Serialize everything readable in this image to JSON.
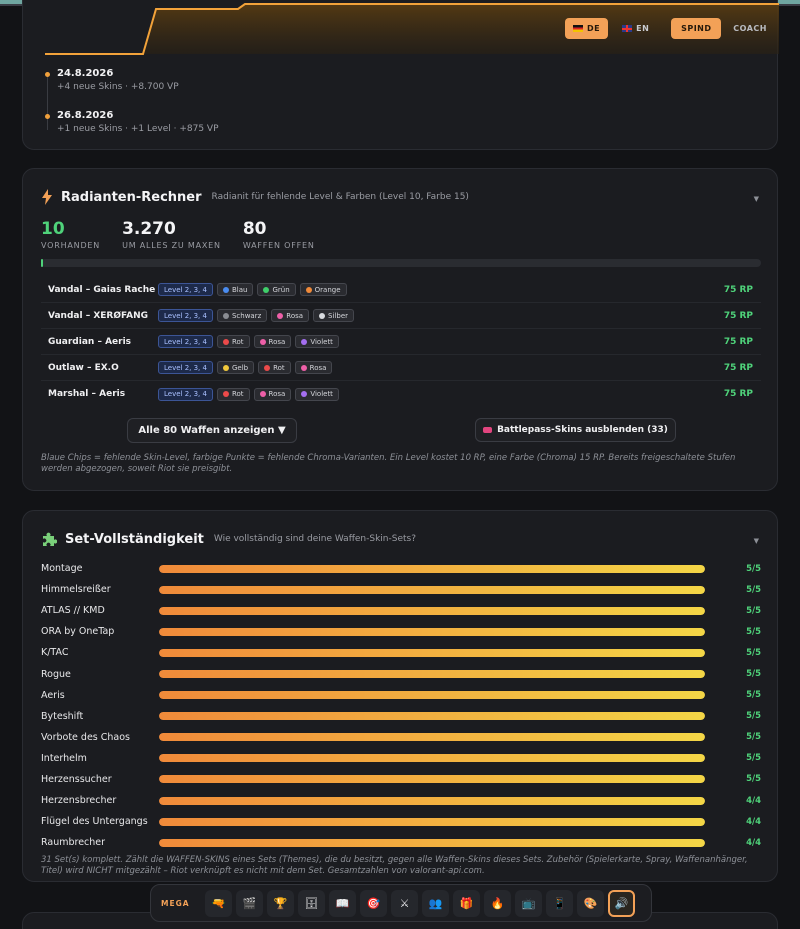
{
  "header": {
    "lang_de": "DE",
    "lang_en": "EN",
    "spind_label": "SPIND",
    "coach_label": "COACH"
  },
  "timeline": [
    {
      "date": "24.8.2026",
      "detail": "+4 neue Skins · +8.700 VP"
    },
    {
      "date": "26.8.2026",
      "detail": "+1 neue Skins · +1 Level · +875 VP"
    }
  ],
  "radiant": {
    "title": "Radianten-Rechner",
    "subtitle": "Radianit für fehlende Level & Farben (Level 10, Farbe 15)",
    "stats": [
      {
        "value": "10",
        "label": "VORHANDEN"
      },
      {
        "value": "3.270",
        "label": "UM ALLES ZU MAXEN"
      },
      {
        "value": "80",
        "label": "WAFFEN OFFEN"
      }
    ],
    "progress_fraction": 0.003,
    "rows": [
      {
        "name": "Vandal – Gaias Rache",
        "levels": "Level 2, 3, 4",
        "chips": [
          {
            "label": "Blau",
            "color": "#4a8cf0"
          },
          {
            "label": "Grün",
            "color": "#3fcf6a"
          },
          {
            "label": "Orange",
            "color": "#f08a3a"
          }
        ],
        "price": "75 RP"
      },
      {
        "name": "Vandal – XERØFANG",
        "levels": "Level 2, 3, 4",
        "chips": [
          {
            "label": "Schwarz",
            "color": "#8a8c92"
          },
          {
            "label": "Rosa",
            "color": "#ee5fa8"
          },
          {
            "label": "Silber",
            "color": "#d8dade"
          }
        ],
        "price": "75 RP"
      },
      {
        "name": "Guardian – Aeris",
        "levels": "Level 2, 3, 4",
        "chips": [
          {
            "label": "Rot",
            "color": "#ec4a4a"
          },
          {
            "label": "Rosa",
            "color": "#ee5fa8"
          },
          {
            "label": "Violett",
            "color": "#a46ef0"
          }
        ],
        "price": "75 RP"
      },
      {
        "name": "Outlaw – EX.O",
        "levels": "Level 2, 3, 4",
        "chips": [
          {
            "label": "Gelb",
            "color": "#f2c93c"
          },
          {
            "label": "Rot",
            "color": "#ec4a4a"
          },
          {
            "label": "Rosa",
            "color": "#ee5fa8"
          }
        ],
        "price": "75 RP"
      },
      {
        "name": "Marshal – Aeris",
        "levels": "Level 2, 3, 4",
        "chips": [
          {
            "label": "Rot",
            "color": "#ec4a4a"
          },
          {
            "label": "Rosa",
            "color": "#ee5fa8"
          },
          {
            "label": "Violett",
            "color": "#a46ef0"
          }
        ],
        "price": "75 RP"
      }
    ],
    "show_all_label": "Alle 80 Waffen anzeigen ▼",
    "hide_bp_label": "Battlepass-Skins ausblenden (33)",
    "note": "Blaue Chips = fehlende Skin-Level, farbige Punkte = fehlende Chroma-Varianten. Ein Level kostet 10 RP, eine Farbe (Chroma) 15 RP. Bereits freigeschaltete Stufen werden abgezogen, soweit Riot sie preisgibt."
  },
  "sets": {
    "title": "Set-Vollständigkeit",
    "subtitle": "Wie vollständig sind deine Waffen-Skin-Sets?",
    "items": [
      {
        "name": "Montage",
        "count": "5/5",
        "fraction": 1
      },
      {
        "name": "Himmelsreißer",
        "count": "5/5",
        "fraction": 1
      },
      {
        "name": "ATLAS // KMD",
        "count": "5/5",
        "fraction": 1
      },
      {
        "name": "ORA by OneTap",
        "count": "5/5",
        "fraction": 1
      },
      {
        "name": "K/TAC",
        "count": "5/5",
        "fraction": 1
      },
      {
        "name": "Rogue",
        "count": "5/5",
        "fraction": 1
      },
      {
        "name": "Aeris",
        "count": "5/5",
        "fraction": 1
      },
      {
        "name": "Byteshift",
        "count": "5/5",
        "fraction": 1
      },
      {
        "name": "Vorbote des Chaos",
        "count": "5/5",
        "fraction": 1
      },
      {
        "name": "Interhelm",
        "count": "5/5",
        "fraction": 1
      },
      {
        "name": "Herzenssucher",
        "count": "5/5",
        "fraction": 1
      },
      {
        "name": "Herzensbrecher",
        "count": "4/4",
        "fraction": 1
      },
      {
        "name": "Flügel des Untergangs",
        "count": "4/4",
        "fraction": 1
      },
      {
        "name": "Raumbrecher",
        "count": "4/4",
        "fraction": 1
      }
    ],
    "note": "31 Set(s) komplett. Zählt die WAFFEN-SKINS eines Sets (Themes), die du besitzt, gegen alle Waffen-Skins dieses Sets. Zubehör (Spielerkarte, Spray, Waffenanhänger, Titel) wird NICHT mitgezählt – Riot verknüpft es nicht mit dem Set. Gesamtzahlen von valorant-api.com."
  },
  "dock": {
    "label": "MEGA",
    "icons": [
      "🔫",
      "🎬",
      "🏆",
      "🗄",
      "📖",
      "🎯",
      "⚔",
      "👥",
      "🎁",
      "🔥",
      "📺",
      "📱",
      "🎨",
      "🔊"
    ]
  }
}
